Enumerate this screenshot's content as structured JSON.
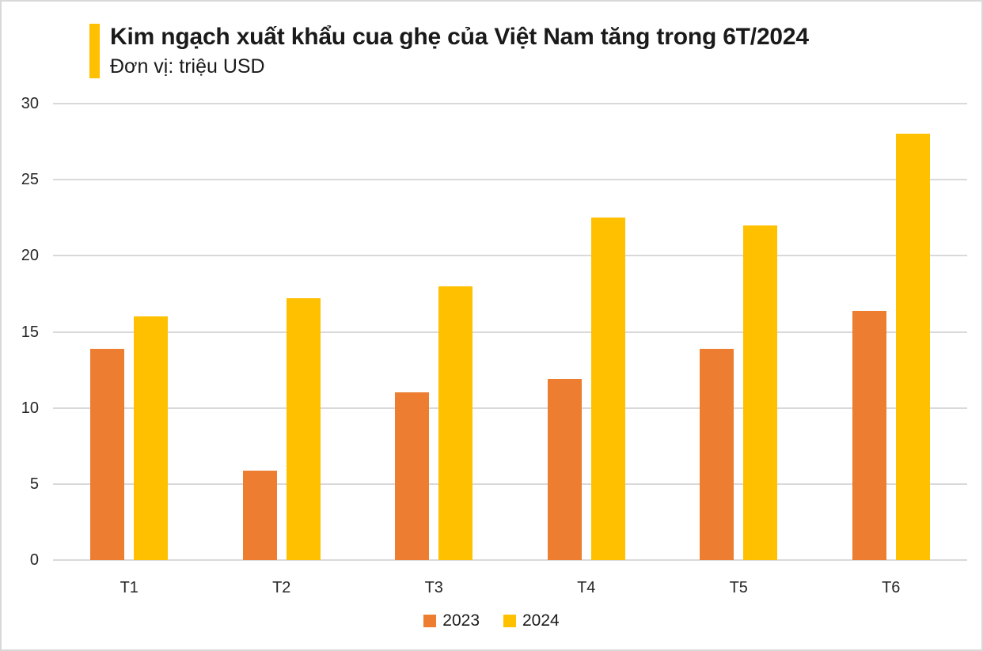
{
  "chart_data": {
    "type": "bar",
    "title": "Kim ngạch xuất khẩu cua ghẹ của Việt Nam tăng trong 6T/2024",
    "unit_label": "Đơn vị: triệu USD",
    "categories": [
      "T1",
      "T2",
      "T3",
      "T4",
      "T5",
      "T6"
    ],
    "series": [
      {
        "name": "2023",
        "color": "#ED7D31",
        "values": [
          13.9,
          5.9,
          11.0,
          11.9,
          13.9,
          16.4
        ]
      },
      {
        "name": "2024",
        "color": "#FFC000",
        "values": [
          16.0,
          17.2,
          18.0,
          22.5,
          22.0,
          28.0
        ]
      }
    ],
    "ylim": [
      0,
      30
    ],
    "yticks": [
      0,
      5,
      10,
      15,
      20,
      25,
      30
    ],
    "grid": true,
    "legend_position": "bottom",
    "colors": {
      "accent_bar": "#FFC000",
      "gridline": "#D9D9D9",
      "background": "#FFFFFF",
      "page_border": "#D9D9D9",
      "text": "#1A1A1A"
    }
  }
}
